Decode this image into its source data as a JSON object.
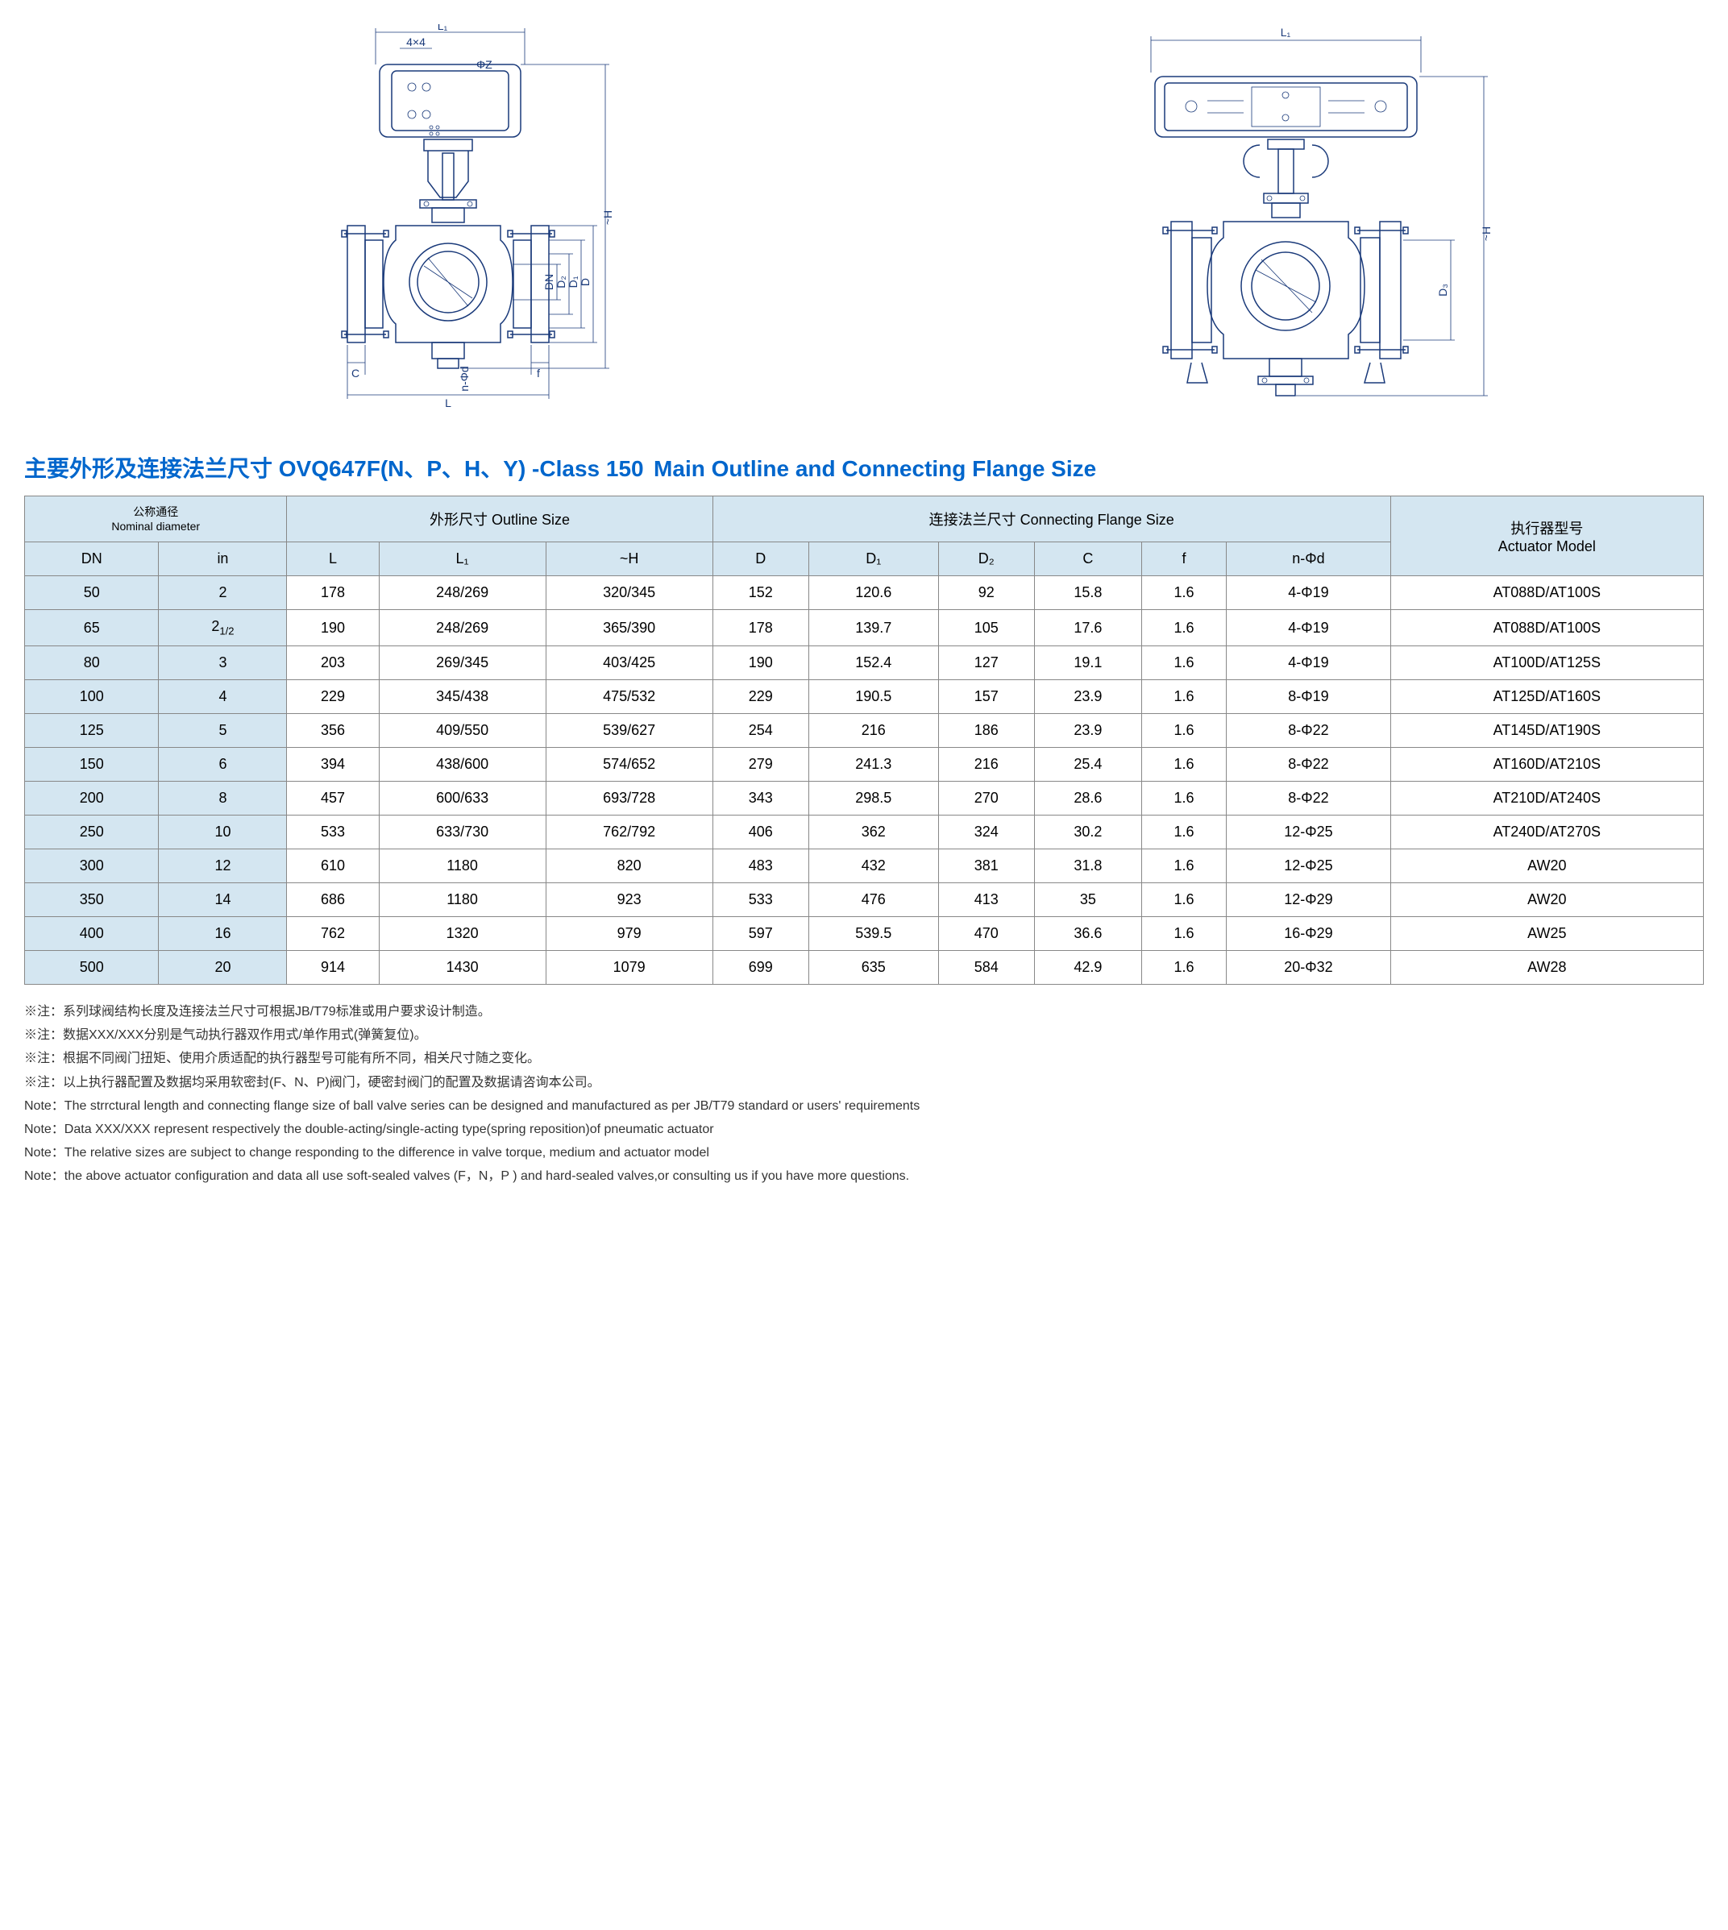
{
  "colors": {
    "title": "#0066cc",
    "header_bg": "#d4e6f1",
    "border": "#888888",
    "diagram_stroke": "#1a3a7a",
    "text": "#000000",
    "notes_text": "#333333"
  },
  "typography": {
    "title_fontsize": 28,
    "title_weight": "bold",
    "table_fontsize": 18,
    "notes_fontsize": 16,
    "header_small_fontsize": 14
  },
  "diagram_labels": {
    "left": {
      "L1": "L₁",
      "L": "L",
      "H": "~H",
      "C": "C",
      "f": "f",
      "n_phi_d": "n-Φd",
      "DN": "DN",
      "D": "D",
      "D1": "D₁",
      "D2": "D₂",
      "phi_Z": "ΦZ",
      "boss": "4×4"
    },
    "right": {
      "L1": "L₁",
      "H": "~H",
      "D3": "D₃"
    }
  },
  "title_cn": "主要外形及连接法兰尺寸 OVQ647F(N、P、H、Y) -Class 150",
  "title_en": "Main Outline and Connecting Flange Size",
  "table": {
    "header_group1_cn": "公称通径",
    "header_group1_en": "Nominal diameter",
    "header_group2_cn": "外形尺寸",
    "header_group2_en": "Outline Size",
    "header_group3_cn": "连接法兰尺寸",
    "header_group3_en": "Connecting Flange Size",
    "header_group4_cn": "执行器型号",
    "header_group4_en": "Actuator Model",
    "columns": [
      "DN",
      "in",
      "L",
      "L₁",
      "~H",
      "D",
      "D₁",
      "D₂",
      "C",
      "f",
      "n-Φd"
    ],
    "rows": [
      {
        "DN": "50",
        "in": "2",
        "L": "178",
        "L1": "248/269",
        "H": "320/345",
        "D": "152",
        "D1": "120.6",
        "D2": "92",
        "C": "15.8",
        "f": "1.6",
        "nphid": "4-Φ19",
        "act": "AT088D/AT100S"
      },
      {
        "DN": "65",
        "in": "2",
        "in_frac": "1/2",
        "L": "190",
        "L1": "248/269",
        "H": "365/390",
        "D": "178",
        "D1": "139.7",
        "D2": "105",
        "C": "17.6",
        "f": "1.6",
        "nphid": "4-Φ19",
        "act": "AT088D/AT100S"
      },
      {
        "DN": "80",
        "in": "3",
        "L": "203",
        "L1": "269/345",
        "H": "403/425",
        "D": "190",
        "D1": "152.4",
        "D2": "127",
        "C": "19.1",
        "f": "1.6",
        "nphid": "4-Φ19",
        "act": "AT100D/AT125S"
      },
      {
        "DN": "100",
        "in": "4",
        "L": "229",
        "L1": "345/438",
        "H": "475/532",
        "D": "229",
        "D1": "190.5",
        "D2": "157",
        "C": "23.9",
        "f": "1.6",
        "nphid": "8-Φ19",
        "act": "AT125D/AT160S"
      },
      {
        "DN": "125",
        "in": "5",
        "L": "356",
        "L1": "409/550",
        "H": "539/627",
        "D": "254",
        "D1": "216",
        "D2": "186",
        "C": "23.9",
        "f": "1.6",
        "nphid": "8-Φ22",
        "act": "AT145D/AT190S"
      },
      {
        "DN": "150",
        "in": "6",
        "L": "394",
        "L1": "438/600",
        "H": "574/652",
        "D": "279",
        "D1": "241.3",
        "D2": "216",
        "C": "25.4",
        "f": "1.6",
        "nphid": "8-Φ22",
        "act": "AT160D/AT210S"
      },
      {
        "DN": "200",
        "in": "8",
        "L": "457",
        "L1": "600/633",
        "H": "693/728",
        "D": "343",
        "D1": "298.5",
        "D2": "270",
        "C": "28.6",
        "f": "1.6",
        "nphid": "8-Φ22",
        "act": "AT210D/AT240S"
      },
      {
        "DN": "250",
        "in": "10",
        "L": "533",
        "L1": "633/730",
        "H": "762/792",
        "D": "406",
        "D1": "362",
        "D2": "324",
        "C": "30.2",
        "f": "1.6",
        "nphid": "12-Φ25",
        "act": "AT240D/AT270S"
      },
      {
        "DN": "300",
        "in": "12",
        "L": "610",
        "L1": "1180",
        "H": "820",
        "D": "483",
        "D1": "432",
        "D2": "381",
        "C": "31.8",
        "f": "1.6",
        "nphid": "12-Φ25",
        "act": "AW20"
      },
      {
        "DN": "350",
        "in": "14",
        "L": "686",
        "L1": "1180",
        "H": "923",
        "D": "533",
        "D1": "476",
        "D2": "413",
        "C": "35",
        "f": "1.6",
        "nphid": "12-Φ29",
        "act": "AW20"
      },
      {
        "DN": "400",
        "in": "16",
        "L": "762",
        "L1": "1320",
        "H": "979",
        "D": "597",
        "D1": "539.5",
        "D2": "470",
        "C": "36.6",
        "f": "1.6",
        "nphid": "16-Φ29",
        "act": "AW25"
      },
      {
        "DN": "500",
        "in": "20",
        "L": "914",
        "L1": "1430",
        "H": "1079",
        "D": "699",
        "D1": "635",
        "D2": "584",
        "C": "42.9",
        "f": "1.6",
        "nphid": "20-Φ32",
        "act": "AW28"
      }
    ]
  },
  "notes_cn": [
    "※注：系列球阀结构长度及连接法兰尺寸可根据JB/T79标准或用户要求设计制造。",
    "※注：数据XXX/XXX分别是气动执行器双作用式/单作用式(弹簧复位)。",
    "※注：根据不同阀门扭矩、使用介质适配的执行器型号可能有所不同，相关尺寸随之变化。",
    "※注：以上执行器配置及数据均采用软密封(F、N、P)阀门，硬密封阀门的配置及数据请咨询本公司。"
  ],
  "notes_en": [
    "Note：The strrctural length and connecting flange size of ball valve series can be designed and manufactured as per JB/T79 standard or users' requirements",
    "Note：Data XXX/XXX represent respectively the double-acting/single-acting type(spring reposition)of pneumatic actuator",
    "Note：The relative sizes are subject to change responding to the difference in valve torque, medium and actuator model",
    "Note：the above actuator  configuration and data  all use soft-sealed valves (F，N，P ) and  hard-sealed valves,or consulting us if you have more questions."
  ]
}
